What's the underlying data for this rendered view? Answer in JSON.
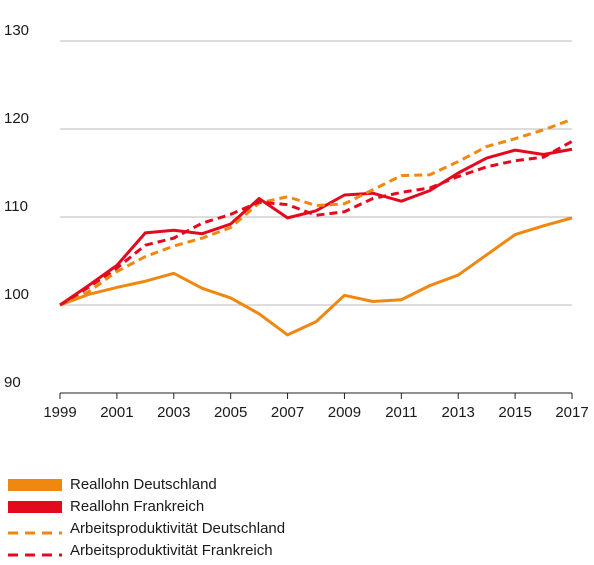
{
  "chart_data": {
    "type": "line",
    "x": [
      1999,
      2000,
      2001,
      2002,
      2003,
      2004,
      2005,
      2006,
      2007,
      2008,
      2009,
      2010,
      2011,
      2012,
      2013,
      2014,
      2015,
      2016,
      2017
    ],
    "xlim": [
      1999,
      2017
    ],
    "xticks": [
      1999,
      2001,
      2003,
      2005,
      2007,
      2009,
      2011,
      2013,
      2015,
      2017
    ],
    "ylim": [
      90,
      130
    ],
    "yticks": [
      90,
      100,
      110,
      120,
      130
    ],
    "grid": true,
    "legend": "bottom-left",
    "series": [
      {
        "name": "Reallohn Deutschland",
        "color": "#f0870f",
        "dashed": false,
        "values": [
          100,
          101.2,
          102,
          102.7,
          103.6,
          101.9,
          100.8,
          99,
          96.6,
          98.1,
          101.1,
          100.4,
          100.6,
          102.2,
          103.4,
          105.7,
          108,
          109,
          109.9
        ]
      },
      {
        "name": "Reallohn Frankreich",
        "color": "#e30a1e",
        "dashed": false,
        "values": [
          100,
          102.2,
          104.5,
          108.2,
          108.5,
          108.1,
          109.2,
          112.1,
          109.9,
          110.7,
          112.5,
          112.7,
          111.8,
          113,
          115,
          116.7,
          117.6,
          117.1,
          117.7
        ]
      },
      {
        "name": "Arbeitsproduktivität Deutschland",
        "color": "#f0870f",
        "dashed": true,
        "values": [
          100,
          101.5,
          103.8,
          105.5,
          106.7,
          107.6,
          108.8,
          111.6,
          112.3,
          111.3,
          111.5,
          113.1,
          114.7,
          114.8,
          116.3,
          118,
          118.9,
          119.9,
          121.1
        ]
      },
      {
        "name": "Arbeitsproduktivität Frankreich",
        "color": "#e30a1e",
        "dashed": true,
        "values": [
          100,
          102,
          104.2,
          106.8,
          107.6,
          109.3,
          110.3,
          111.7,
          111.4,
          110.2,
          110.6,
          112.1,
          112.8,
          113.3,
          114.6,
          115.7,
          116.4,
          116.8,
          118.6
        ]
      }
    ]
  }
}
